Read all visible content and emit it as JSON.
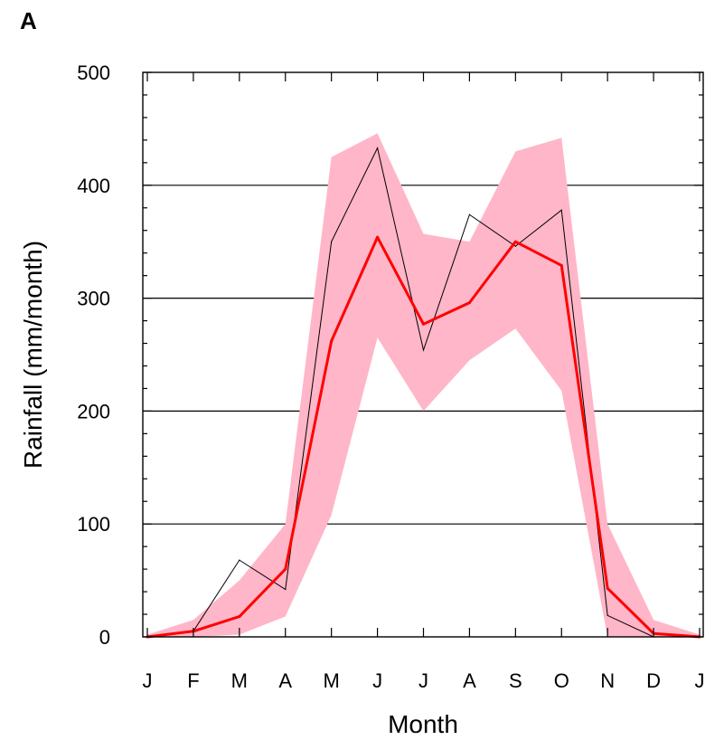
{
  "panel_label": "A",
  "chart_data": {
    "type": "line",
    "title": "",
    "xlabel": "Month",
    "ylabel": "Rainfall (mm/month)",
    "categories": [
      "J",
      "F",
      "M",
      "A",
      "M",
      "J",
      "J",
      "A",
      "S",
      "O",
      "N",
      "D",
      "J"
    ],
    "ylim": [
      0,
      500
    ],
    "yticks": [
      0,
      100,
      200,
      300,
      400,
      500
    ],
    "grid": true,
    "series": [
      {
        "role": "band",
        "color": "#ffb6c8",
        "upper": [
          2,
          15,
          50,
          100,
          425,
          446,
          357,
          350,
          430,
          442,
          100,
          15,
          2
        ],
        "lower": [
          0,
          0,
          2,
          18,
          108,
          265,
          200,
          245,
          273,
          218,
          0,
          0,
          0
        ]
      },
      {
        "role": "mean",
        "color": "#ff0000",
        "values": [
          0,
          5,
          18,
          60,
          262,
          354,
          277,
          296,
          350,
          329,
          43,
          3,
          0
        ]
      },
      {
        "role": "observed",
        "color": "#000000",
        "values": [
          0,
          5,
          68,
          42,
          350,
          433,
          254,
          374,
          346,
          378,
          19,
          0,
          0
        ]
      }
    ]
  }
}
